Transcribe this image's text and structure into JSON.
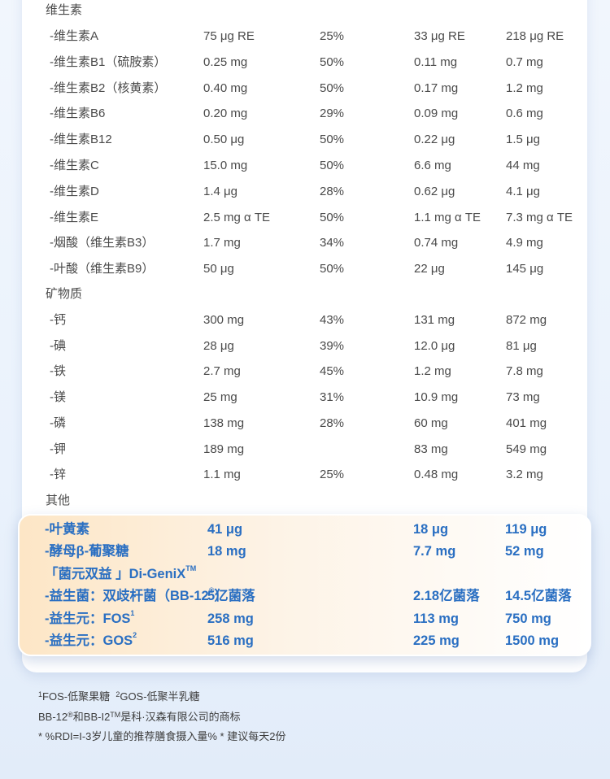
{
  "sections": {
    "vitamins": "维生素",
    "minerals": "矿物质",
    "others": "其他"
  },
  "vitamin_rows": [
    {
      "name": "-维生素A",
      "amount": "75 μg RE",
      "rdi": "25%",
      "per100": "33 μg RE",
      "per_serving": "218 μg RE"
    },
    {
      "name": "-维生素B1（硫胺素）",
      "amount": "0.25 mg",
      "rdi": "50%",
      "per100": "0.11 mg",
      "per_serving": "0.7 mg"
    },
    {
      "name": "-维生素B2（核黄素）",
      "amount": "0.40 mg",
      "rdi": "50%",
      "per100": "0.17 mg",
      "per_serving": "1.2 mg"
    },
    {
      "name": "-维生素B6",
      "amount": "0.20 mg",
      "rdi": "29%",
      "per100": "0.09 mg",
      "per_serving": "0.6 mg"
    },
    {
      "name": "-维生素B12",
      "amount": "0.50 μg",
      "rdi": "50%",
      "per100": "0.22 μg",
      "per_serving": "1.5 μg"
    },
    {
      "name": "-维生素C",
      "amount": "15.0 mg",
      "rdi": "50%",
      "per100": "6.6 mg",
      "per_serving": "44 mg"
    },
    {
      "name": "-维生素D",
      "amount": "1.4 μg",
      "rdi": "28%",
      "per100": "0.62 μg",
      "per_serving": "4.1 μg"
    },
    {
      "name": "-维生素E",
      "amount": "2.5 mg α TE",
      "rdi": "50%",
      "per100": "1.1 mg α TE",
      "per_serving": "7.3 mg α TE"
    },
    {
      "name": "-烟酸（维生素B3）",
      "amount": "1.7 mg",
      "rdi": "34%",
      "per100": "0.74 mg",
      "per_serving": "4.9 mg"
    },
    {
      "name": "-叶酸（维生素B9）",
      "amount": "50 μg",
      "rdi": "50%",
      "per100": "22 μg",
      "per_serving": "145 μg"
    }
  ],
  "mineral_rows": [
    {
      "name": "-钙",
      "amount": "300 mg",
      "rdi": "43%",
      "per100": "131 mg",
      "per_serving": "872 mg"
    },
    {
      "name": "-碘",
      "amount": "28 μg",
      "rdi": "39%",
      "per100": "12.0 μg",
      "per_serving": "81 μg"
    },
    {
      "name": "-铁",
      "amount": "2.7 mg",
      "rdi": "45%",
      "per100": "1.2 mg",
      "per_serving": "7.8 mg"
    },
    {
      "name": "-镁",
      "amount": "25 mg",
      "rdi": "31%",
      "per100": "10.9 mg",
      "per_serving": "73 mg"
    },
    {
      "name": "-磷",
      "amount": "138 mg",
      "rdi": "28%",
      "per100": "60 mg",
      "per_serving": "401 mg"
    },
    {
      "name": "-钾",
      "amount": "189 mg",
      "rdi": "",
      "per100": "83 mg",
      "per_serving": "549 mg"
    },
    {
      "name": "-锌",
      "amount": "1.1 mg",
      "rdi": "25%",
      "per100": "0.48 mg",
      "per_serving": "3.2 mg"
    }
  ],
  "highlight": {
    "lutein": {
      "name": "-叶黄素",
      "amount": "41 μg",
      "per100": "18 μg",
      "per_serving": "119 μg"
    },
    "glucan": {
      "name": "-酵母β-葡聚糖",
      "amount": "18 mg",
      "per100": "7.7 mg",
      "per_serving": "52 mg"
    },
    "digenix": {
      "title": "「菌元双益 」Di-GeniX",
      "tm": "TM"
    },
    "probiotic": {
      "name": "-益生菌：双歧杆菌（BB-12",
      "reg": "®",
      "close": "）",
      "amount": "5亿菌落",
      "per100": "2.18亿菌落",
      "per_serving": "14.5亿菌落"
    },
    "fos": {
      "name": "-益生元：FOS",
      "sup": "1",
      "amount": "258 mg",
      "per100": "113 mg",
      "per_serving": "750 mg"
    },
    "gos": {
      "name": "-益生元：GOS",
      "sup": "2",
      "amount": "516 mg",
      "per100": "225 mg",
      "per_serving": "1500 mg"
    }
  },
  "footnotes": {
    "line1_sup1": "1",
    "line1_a": "FOS-低聚果糖",
    "line1_sup2": "2",
    "line1_b": "GOS-低聚半乳糖",
    "line2_a": "BB-12",
    "line2_reg": "®",
    "line2_b": "和BB-I2",
    "line2_tm": "TM",
    "line2_c": "是科·汉森有限公司的商标",
    "line3": "* %RDI=I-3岁儿童的推荐膳食摄入量%   * 建议每天2份"
  },
  "colors": {
    "highlight_text": "#2a6fc2",
    "body_text": "#4a4a4a"
  }
}
